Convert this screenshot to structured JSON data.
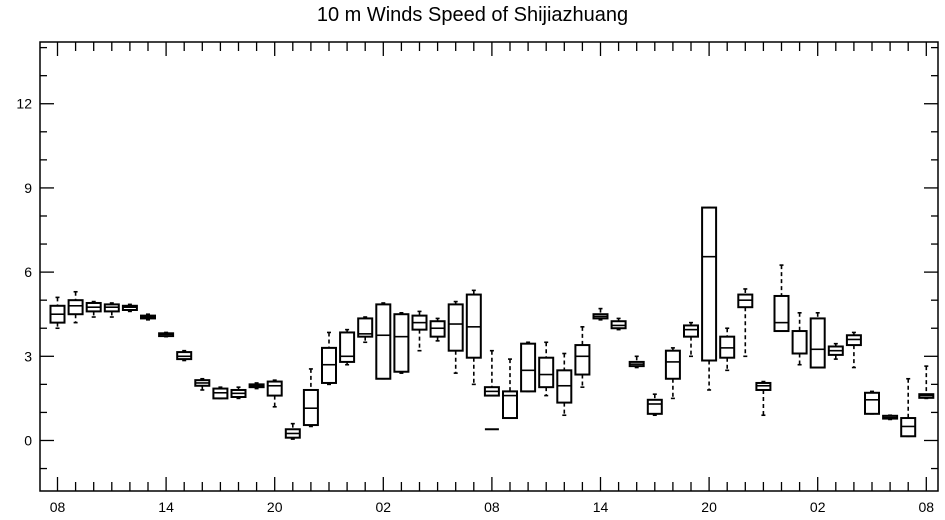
{
  "chart_data": {
    "type": "box",
    "title": "10 m Winds Speed of Shijiazhuang",
    "xlabel": "",
    "ylabel": "",
    "ylim": [
      -1.8,
      14.2
    ],
    "xlim": [
      -1,
      50
    ],
    "y_ticks": [
      0,
      3,
      6,
      9,
      12
    ],
    "x_tick_labels": [
      {
        "x": 0,
        "label": "08"
      },
      {
        "x": 6,
        "label": "14"
      },
      {
        "x": 12,
        "label": "20"
      },
      {
        "x": 18,
        "label": "02"
      },
      {
        "x": 24,
        "label": "08"
      },
      {
        "x": 30,
        "label": "14"
      },
      {
        "x": 36,
        "label": "20"
      },
      {
        "x": 42,
        "label": "02"
      },
      {
        "x": 48,
        "label": "08"
      }
    ],
    "boxes": [
      {
        "x": 0,
        "min": 4.0,
        "q1": 4.2,
        "median": 4.5,
        "q3": 4.8,
        "max": 5.1
      },
      {
        "x": 1,
        "min": 4.2,
        "q1": 4.5,
        "median": 4.8,
        "q3": 5.0,
        "max": 5.3
      },
      {
        "x": 2,
        "min": 4.4,
        "q1": 4.6,
        "median": 4.75,
        "q3": 4.9,
        "max": 4.95
      },
      {
        "x": 3,
        "min": 4.4,
        "q1": 4.6,
        "median": 4.75,
        "q3": 4.85,
        "max": 4.9
      },
      {
        "x": 4,
        "min": 4.6,
        "q1": 4.65,
        "median": 4.75,
        "q3": 4.8,
        "max": 4.85
      },
      {
        "x": 5,
        "min": 4.3,
        "q1": 4.35,
        "median": 4.4,
        "q3": 4.45,
        "max": 4.5
      },
      {
        "x": 6,
        "min": 3.7,
        "q1": 3.72,
        "median": 3.78,
        "q3": 3.82,
        "max": 3.85
      },
      {
        "x": 7,
        "min": 2.85,
        "q1": 2.9,
        "median": 3.0,
        "q3": 3.15,
        "max": 3.2
      },
      {
        "x": 8,
        "min": 1.8,
        "q1": 1.95,
        "median": 2.05,
        "q3": 2.15,
        "max": 2.2
      },
      {
        "x": 9,
        "min": 1.5,
        "q1": 1.5,
        "median": 1.7,
        "q3": 1.85,
        "max": 1.9
      },
      {
        "x": 10,
        "min": 1.5,
        "q1": 1.55,
        "median": 1.68,
        "q3": 1.8,
        "max": 1.9
      },
      {
        "x": 11,
        "min": 1.85,
        "q1": 1.9,
        "median": 1.95,
        "q3": 2.0,
        "max": 2.05
      },
      {
        "x": 12,
        "min": 1.2,
        "q1": 1.6,
        "median": 1.95,
        "q3": 2.1,
        "max": 2.15
      },
      {
        "x": 13,
        "min": 0.05,
        "q1": 0.1,
        "median": 0.25,
        "q3": 0.4,
        "max": 0.6
      },
      {
        "x": 14,
        "min": 0.5,
        "q1": 0.55,
        "median": 1.15,
        "q3": 1.8,
        "max": 2.55
      },
      {
        "x": 15,
        "min": 2.0,
        "q1": 2.05,
        "median": 2.7,
        "q3": 3.3,
        "max": 3.85
      },
      {
        "x": 16,
        "min": 2.7,
        "q1": 2.8,
        "median": 3.0,
        "q3": 3.85,
        "max": 3.95
      },
      {
        "x": 17,
        "min": 3.5,
        "q1": 3.7,
        "median": 3.8,
        "q3": 4.35,
        "max": 4.4
      },
      {
        "x": 18,
        "min": 2.2,
        "q1": 2.2,
        "median": 3.75,
        "q3": 4.85,
        "max": 4.9
      },
      {
        "x": 19,
        "min": 2.4,
        "q1": 2.45,
        "median": 3.7,
        "q3": 4.5,
        "max": 4.55
      },
      {
        "x": 20,
        "min": 3.2,
        "q1": 3.95,
        "median": 4.2,
        "q3": 4.45,
        "max": 4.6
      },
      {
        "x": 21,
        "min": 3.55,
        "q1": 3.7,
        "median": 4.0,
        "q3": 4.25,
        "max": 4.35
      },
      {
        "x": 22,
        "min": 2.4,
        "q1": 3.2,
        "median": 4.15,
        "q3": 4.85,
        "max": 4.95
      },
      {
        "x": 23,
        "min": 2.0,
        "q1": 2.95,
        "median": 4.05,
        "q3": 5.2,
        "max": 5.35
      },
      {
        "x": 24,
        "min": 1.6,
        "q1": 1.6,
        "median": 1.75,
        "q3": 1.9,
        "max": 3.2
      },
      {
        "x": 25,
        "min": 0.8,
        "q1": 0.8,
        "median": 1.6,
        "q3": 1.75,
        "max": 2.9
      },
      {
        "x": 26,
        "min": 1.75,
        "q1": 1.75,
        "median": 2.5,
        "q3": 3.45,
        "max": 3.5
      },
      {
        "x": 27,
        "min": 1.6,
        "q1": 1.9,
        "median": 2.35,
        "q3": 2.95,
        "max": 3.5
      },
      {
        "x": 28,
        "min": 0.9,
        "q1": 1.35,
        "median": 1.95,
        "q3": 2.5,
        "max": 3.1
      },
      {
        "x": 29,
        "min": 1.9,
        "q1": 2.35,
        "median": 3.0,
        "q3": 3.4,
        "max": 4.05
      },
      {
        "x": 30,
        "min": 4.3,
        "q1": 4.35,
        "median": 4.42,
        "q3": 4.5,
        "max": 4.7
      },
      {
        "x": 31,
        "min": 3.95,
        "q1": 4.0,
        "median": 4.1,
        "q3": 4.25,
        "max": 4.35
      },
      {
        "x": 32,
        "min": 2.6,
        "q1": 2.65,
        "median": 2.72,
        "q3": 2.8,
        "max": 3.0
      },
      {
        "x": 33,
        "min": 0.9,
        "q1": 0.95,
        "median": 1.3,
        "q3": 1.45,
        "max": 1.65
      },
      {
        "x": 34,
        "min": 1.5,
        "q1": 2.2,
        "median": 2.8,
        "q3": 3.2,
        "max": 3.3
      },
      {
        "x": 35,
        "min": 3.0,
        "q1": 3.7,
        "median": 3.95,
        "q3": 4.1,
        "max": 4.2
      },
      {
        "x": 36,
        "min": 1.8,
        "q1": 2.85,
        "median": 6.55,
        "q3": 8.3,
        "max": 8.3
      },
      {
        "x": 37,
        "min": 2.5,
        "q1": 2.95,
        "median": 3.3,
        "q3": 3.7,
        "max": 4.0
      },
      {
        "x": 38,
        "min": 3.0,
        "q1": 4.75,
        "median": 5.0,
        "q3": 5.2,
        "max": 5.4
      },
      {
        "x": 39,
        "min": 0.9,
        "q1": 1.8,
        "median": 1.95,
        "q3": 2.05,
        "max": 2.1
      },
      {
        "x": 40,
        "min": 3.9,
        "q1": 3.9,
        "median": 4.2,
        "q3": 5.15,
        "max": 6.25
      },
      {
        "x": 41,
        "min": 2.7,
        "q1": 3.1,
        "median": 3.1,
        "q3": 3.9,
        "max": 4.55
      },
      {
        "x": 42,
        "min": 2.6,
        "q1": 2.6,
        "median": 3.25,
        "q3": 4.35,
        "max": 4.55
      },
      {
        "x": 43,
        "min": 2.9,
        "q1": 3.05,
        "median": 3.2,
        "q3": 3.35,
        "max": 3.45
      },
      {
        "x": 44,
        "min": 2.6,
        "q1": 3.4,
        "median": 3.6,
        "q3": 3.75,
        "max": 3.85
      },
      {
        "x": 45,
        "min": 0.95,
        "q1": 0.95,
        "median": 1.45,
        "q3": 1.7,
        "max": 1.75
      },
      {
        "x": 46,
        "min": 0.75,
        "q1": 0.78,
        "median": 0.82,
        "q3": 0.88,
        "max": 0.9
      },
      {
        "x": 47,
        "min": 0.15,
        "q1": 0.15,
        "median": 0.5,
        "q3": 0.8,
        "max": 2.2
      },
      {
        "x": 48,
        "min": 1.5,
        "q1": 1.52,
        "median": 1.6,
        "q3": 1.65,
        "max": 2.65
      }
    ],
    "outliers": [
      {
        "x": 24,
        "y": 0.4
      }
    ],
    "grid": false,
    "legend": "none"
  }
}
